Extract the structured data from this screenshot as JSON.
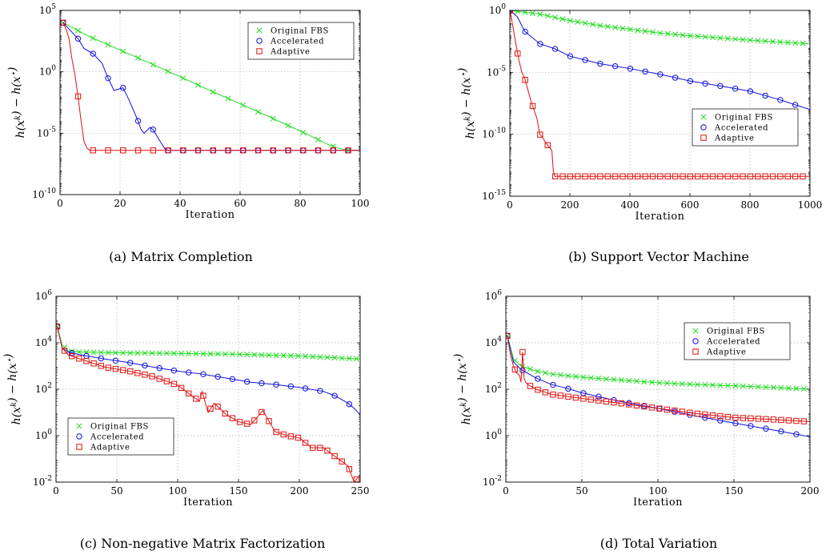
{
  "colors": {
    "original": "#22dd22",
    "accelerated": "#1010dd",
    "adaptive": "#e01010"
  },
  "chart_data": [
    {
      "type": "line",
      "caption": "(a) Matrix Completion",
      "xlabel": "Iteration",
      "ylabel": "h(x^k) − h(x*)",
      "ylog": true,
      "xlim": [
        0,
        100
      ],
      "ylim_exp": [
        -10,
        5
      ],
      "xticks": [
        0,
        20,
        40,
        60,
        80,
        100
      ],
      "yticks_exp": [
        -10,
        -5,
        0,
        5
      ],
      "grid": true,
      "legend_position": "top-right",
      "series": [
        {
          "name": "Original FBS",
          "marker": "x",
          "marker_every": 5,
          "x": [
            1,
            10,
            20,
            30,
            40,
            50,
            60,
            70,
            80,
            85,
            90,
            93,
            96,
            100
          ],
          "y": [
            10000.0,
            700,
            60,
            5,
            0.4,
            0.03,
            0.0025,
            0.0002,
            1.5e-05,
            4e-06,
            1e-06,
            6e-07,
            4e-07,
            4e-07
          ]
        },
        {
          "name": "Accelerated",
          "marker": "o",
          "marker_every": 5,
          "x": [
            1,
            6,
            8,
            11,
            14,
            16,
            18,
            21,
            23,
            26,
            27,
            28,
            30,
            31,
            33,
            35,
            36,
            38,
            40,
            50,
            60,
            70,
            80,
            90,
            100
          ],
          "y": [
            10000.0,
            500,
            80,
            30,
            5,
            0.3,
            0.03,
            0.05,
            0.005,
            0.0001,
            2e-05,
            1e-05,
            3e-05,
            2e-05,
            3e-06,
            5e-07,
            4e-07,
            4e-07,
            4e-07,
            4e-07,
            4e-07,
            4e-07,
            4e-07,
            4e-07,
            4e-07
          ]
        },
        {
          "name": "Adaptive",
          "marker": "s",
          "marker_every": 5,
          "x": [
            1,
            2,
            3,
            4,
            5,
            6,
            7,
            8,
            9,
            10,
            11,
            20,
            30,
            40,
            50,
            60,
            70,
            80,
            90,
            100
          ],
          "y": [
            10000.0,
            3000.0,
            500,
            10,
            0.5,
            0.01,
            0.0001,
            2e-06,
            6e-07,
            4e-07,
            4e-07,
            4e-07,
            4e-07,
            4e-07,
            4e-07,
            4e-07,
            4e-07,
            4e-07,
            4e-07,
            4e-07
          ]
        }
      ]
    },
    {
      "type": "line",
      "caption": "(b) Support Vector Machine",
      "xlabel": "Iteration",
      "ylabel": "h(x^k) − h(x*)",
      "ylog": true,
      "xlim": [
        0,
        1000
      ],
      "ylim_exp": [
        -15,
        0
      ],
      "xticks": [
        0,
        200,
        400,
        600,
        800,
        1000
      ],
      "yticks_exp": [
        -15,
        -10,
        -5,
        0
      ],
      "grid": true,
      "legend_position": "center-right",
      "series": [
        {
          "name": "Original FBS",
          "marker": "x",
          "marker_every": 25,
          "x": [
            1,
            100,
            200,
            300,
            400,
            500,
            600,
            700,
            800,
            900,
            1000
          ],
          "y": [
            1,
            0.5,
            0.15,
            0.06,
            0.03,
            0.015,
            0.009,
            0.006,
            0.004,
            0.0028,
            0.002
          ]
        },
        {
          "name": "Accelerated",
          "marker": "o",
          "marker_every": 50,
          "x": [
            1,
            25,
            50,
            100,
            150,
            200,
            300,
            400,
            500,
            600,
            700,
            800,
            900,
            1000
          ],
          "y": [
            1,
            0.3,
            0.02,
            0.002,
            0.0008,
            0.0002,
            5e-05,
            2e-05,
            7e-06,
            2e-06,
            8e-07,
            3e-07,
            6e-08,
            1e-08
          ]
        },
        {
          "name": "Adaptive",
          "marker": "s",
          "marker_every": 25,
          "x": [
            1,
            10,
            20,
            30,
            40,
            50,
            60,
            70,
            80,
            90,
            100,
            110,
            120,
            130,
            140,
            145,
            150,
            200,
            400,
            600,
            800,
            1000
          ],
          "y": [
            1,
            0.05,
            0.002,
            0.0001,
            1e-05,
            3e-06,
            4e-07,
            5e-08,
            1e-08,
            2e-09,
            1e-10,
            5e-11,
            2e-11,
            1e-11,
            5e-12,
            1e-13,
            4e-14,
            4e-14,
            4e-14,
            4e-14,
            4e-14,
            4e-14
          ]
        }
      ]
    },
    {
      "type": "line",
      "caption": "(c) Non-negative Matrix Factorization",
      "xlabel": "Iteration",
      "ylabel": "h(x^k) − h(x*)",
      "ylog": true,
      "xlim": [
        0,
        250
      ],
      "ylim_exp": [
        -2,
        6
      ],
      "xticks": [
        0,
        50,
        100,
        150,
        200,
        250
      ],
      "yticks_exp": [
        -2,
        0,
        2,
        4,
        6
      ],
      "grid": true,
      "legend_position": "bottom-left",
      "series": [
        {
          "name": "Original FBS",
          "marker": "x",
          "marker_every": 6,
          "x": [
            1,
            5,
            10,
            20,
            50,
            100,
            150,
            200,
            250
          ],
          "y": [
            50000,
            8000,
            4500,
            4000,
            3700,
            3500,
            3200,
            2700,
            2000
          ]
        },
        {
          "name": "Accelerated",
          "marker": "o",
          "marker_every": 12,
          "x": [
            1,
            5,
            10,
            20,
            40,
            60,
            80,
            100,
            120,
            140,
            160,
            180,
            200,
            220,
            230,
            240,
            245,
            250
          ],
          "y": [
            50000,
            6000,
            4000,
            3000,
            2000,
            1400,
            900,
            600,
            450,
            300,
            200,
            160,
            120,
            80,
            50,
            25,
            15,
            8
          ]
        },
        {
          "name": "Adaptive",
          "marker": "s",
          "marker_every": 6,
          "x": [
            1,
            5,
            10,
            20,
            40,
            60,
            80,
            100,
            110,
            118,
            120,
            125,
            130,
            140,
            150,
            160,
            170,
            180,
            190,
            200,
            210,
            220,
            230,
            240,
            245,
            250
          ],
          "y": [
            50000,
            6000,
            3000,
            2000,
            900,
            600,
            350,
            150,
            60,
            30,
            80,
            10,
            25,
            8,
            4,
            3,
            12,
            1.5,
            1,
            0.8,
            0.3,
            0.3,
            0.12,
            0.05,
            0.01,
            0.02
          ]
        }
      ]
    },
    {
      "type": "line",
      "caption": "(d) Total Variation",
      "xlabel": "Iteration",
      "ylabel": "h(x^k) − h(x*)",
      "ylog": true,
      "xlim": [
        0,
        200
      ],
      "ylim_exp": [
        -2,
        6
      ],
      "xticks": [
        0,
        50,
        100,
        150,
        200
      ],
      "yticks_exp": [
        -2,
        0,
        2,
        4,
        6
      ],
      "grid": true,
      "legend_position": "top-right",
      "series": [
        {
          "name": "Original FBS",
          "marker": "x",
          "marker_every": 5,
          "x": [
            1,
            5,
            10,
            20,
            30,
            50,
            75,
            100,
            125,
            150,
            175,
            200
          ],
          "y": [
            20000,
            2000,
            1000,
            600,
            450,
            330,
            250,
            190,
            160,
            140,
            120,
            100
          ]
        },
        {
          "name": "Accelerated",
          "marker": "o",
          "marker_every": 10,
          "x": [
            1,
            5,
            10,
            20,
            30,
            40,
            50,
            75,
            100,
            125,
            150,
            175,
            200
          ],
          "y": [
            20000,
            1500,
            700,
            300,
            160,
            110,
            70,
            30,
            15,
            7,
            3.5,
            1.8,
            0.9
          ]
        },
        {
          "name": "Adaptive",
          "marker": "s",
          "marker_every": 5,
          "x": [
            1,
            3,
            5,
            7,
            9,
            10,
            11,
            12,
            13,
            15,
            20,
            30,
            50,
            75,
            100,
            125,
            150,
            175,
            200
          ],
          "y": [
            20000,
            3000,
            1000,
            500,
            400,
            200,
            4000,
            300,
            200,
            150,
            100,
            60,
            40,
            25,
            15,
            9,
            6,
            5,
            4
          ]
        }
      ]
    }
  ]
}
